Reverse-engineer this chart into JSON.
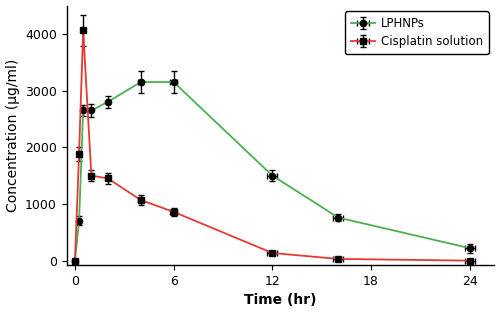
{
  "lphnps_time": [
    0,
    0.25,
    0.5,
    1,
    2,
    4,
    6,
    12,
    16,
    24
  ],
  "lphnps_conc": [
    0,
    700,
    2650,
    2650,
    2800,
    3150,
    3150,
    1500,
    760,
    220
  ],
  "lphnps_yerr": [
    20,
    80,
    100,
    120,
    100,
    200,
    200,
    100,
    60,
    80
  ],
  "cisplatin_time": [
    0,
    0.25,
    0.5,
    1,
    2,
    4,
    6,
    12,
    16,
    24
  ],
  "cisplatin_conc": [
    0,
    1880,
    4060,
    1500,
    1450,
    1070,
    860,
    135,
    30,
    0
  ],
  "cisplatin_xerr": [
    0,
    0.05,
    0.05,
    0.05,
    0.1,
    0.15,
    0.2,
    0.3,
    0.3,
    0.3
  ],
  "cisplatin_yerr": [
    20,
    120,
    280,
    100,
    90,
    80,
    70,
    40,
    15,
    10
  ],
  "lphnps_xerr": [
    0,
    0.05,
    0.05,
    0.05,
    0.1,
    0.15,
    0.2,
    0.3,
    0.3,
    0.3
  ],
  "lphnps_color": "#4CAF50",
  "cisplatin_color": "#E53935",
  "marker_color": "black",
  "xlabel": "Time (hr)",
  "ylabel": "Concentration (μg/ml)",
  "xlim": [
    -0.5,
    25.5
  ],
  "ylim": [
    -80,
    4500
  ],
  "xticks": [
    0,
    6,
    12,
    18,
    24
  ],
  "yticks": [
    0,
    1000,
    2000,
    3000,
    4000
  ],
  "legend_lphnps": "LPHNPs",
  "legend_cisplatin": "Cisplatin solution",
  "background_color": "#ffffff",
  "figsize": [
    5.0,
    3.13
  ],
  "dpi": 100
}
